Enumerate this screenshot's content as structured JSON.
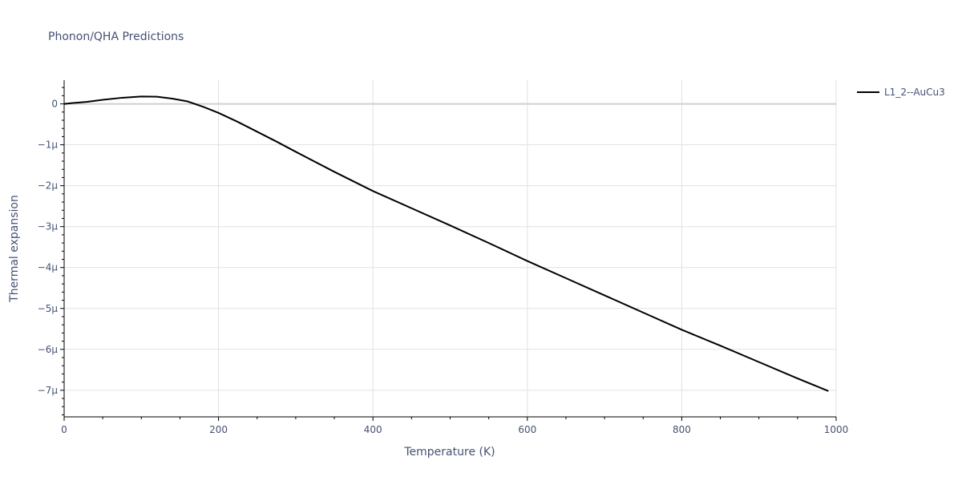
{
  "chart_data": {
    "type": "line",
    "title": "Phonon/QHA Predictions",
    "xlabel": "Temperature (K)",
    "ylabel": "Thermal expansion",
    "xlim": [
      0,
      1000
    ],
    "ylim": [
      -7.65,
      0.58
    ],
    "x_ticks": [
      0,
      200,
      400,
      600,
      800,
      1000
    ],
    "x_tick_labels": [
      "0",
      "200",
      "400",
      "600",
      "800",
      "1000"
    ],
    "y_ticks": [
      0,
      -1,
      -2,
      -3,
      -4,
      -5,
      -6,
      -7
    ],
    "y_tick_labels": [
      "0",
      "−1μ",
      "−2μ",
      "−3μ",
      "−4μ",
      "−5μ",
      "−6μ",
      "−7μ"
    ],
    "y_unit_note": "values in units of 1e-6",
    "grid": true,
    "legend_position": "top-right",
    "series": [
      {
        "name": "L1_2--AuCu3",
        "color": "#000000",
        "x": [
          0,
          10,
          30,
          50,
          75,
          100,
          120,
          140,
          160,
          180,
          200,
          225,
          250,
          275,
          300,
          350,
          400,
          450,
          500,
          550,
          600,
          650,
          700,
          750,
          800,
          850,
          900,
          950,
          990
        ],
        "y": [
          0,
          0.02,
          0.05,
          0.1,
          0.15,
          0.18,
          0.175,
          0.13,
          0.06,
          -0.07,
          -0.22,
          -0.44,
          -0.68,
          -0.92,
          -1.17,
          -1.66,
          -2.13,
          -2.55,
          -2.97,
          -3.4,
          -3.84,
          -4.26,
          -4.68,
          -5.1,
          -5.52,
          -5.91,
          -6.31,
          -6.71,
          -7.02
        ]
      }
    ]
  }
}
